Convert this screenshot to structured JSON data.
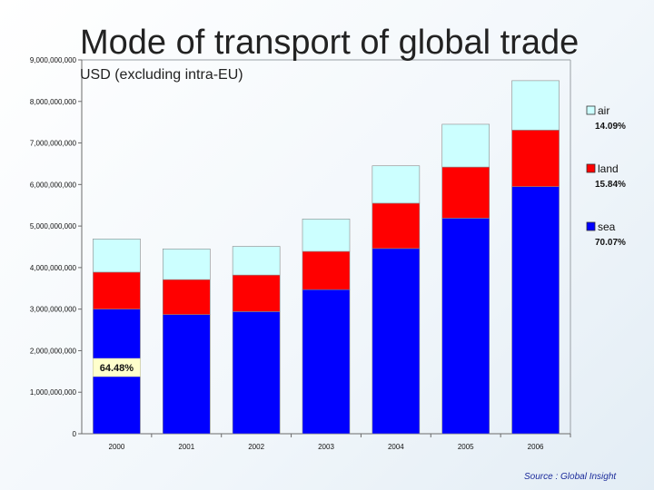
{
  "title": "Mode of transport of global trade",
  "subtitle": "USD (excluding intra-EU)",
  "source": "Source : Global Insight",
  "colors": {
    "sea": "#0000ff",
    "land": "#ff0000",
    "air": "#ccffff"
  },
  "chart_data": {
    "type": "bar",
    "stacked": true,
    "categories": [
      "2000",
      "2001",
      "2002",
      "2003",
      "2004",
      "2005",
      "2006"
    ],
    "series": [
      {
        "name": "sea",
        "values": [
          3000000000,
          2870000000,
          2940000000,
          3470000000,
          4460000000,
          5190000000,
          5950000000
        ]
      },
      {
        "name": "land",
        "values": [
          890000000,
          840000000,
          880000000,
          920000000,
          1090000000,
          1230000000,
          1360000000
        ]
      },
      {
        "name": "air",
        "values": [
          800000000,
          740000000,
          690000000,
          780000000,
          900000000,
          1030000000,
          1190000000
        ]
      }
    ],
    "ylim": [
      0,
      9000000000
    ],
    "yticks": [
      "0",
      "1,000,000,000",
      "2,000,000,000",
      "3,000,000,000",
      "4,000,000,000",
      "5,000,000,000",
      "6,000,000,000",
      "7,000,000,000",
      "8,000,000,000",
      "9,000,000,000"
    ],
    "legend": [
      {
        "name": "air",
        "percent": "14.09%"
      },
      {
        "name": "land",
        "percent": "15.84%"
      },
      {
        "name": "sea",
        "percent": "70.07%"
      }
    ],
    "legend_position": "right",
    "annotation": "64.48%",
    "grid": false
  }
}
